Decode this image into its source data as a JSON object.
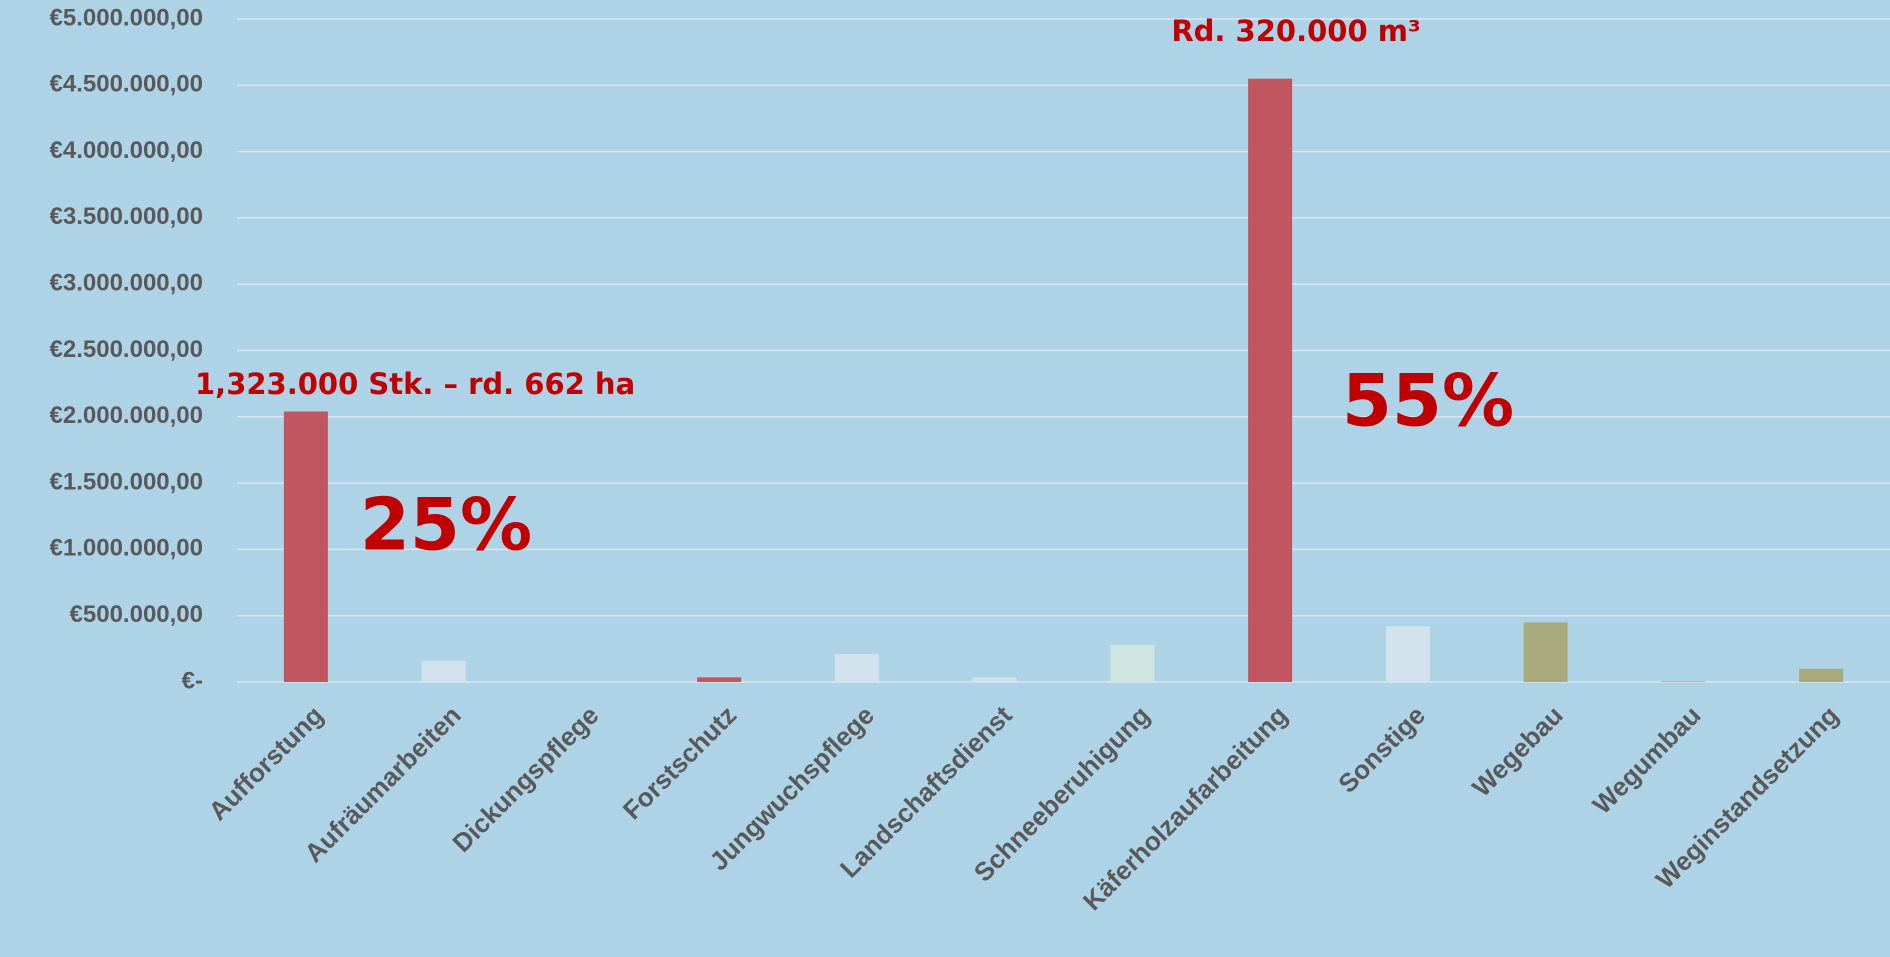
{
  "chart_data": {
    "type": "bar",
    "categories": [
      "Aufforstung",
      "Aufräumarbeiten",
      "Dickungspflege",
      "Forstschutz",
      "Jungwuchspflege",
      "Landschaftsdienst",
      "Schneeberuhigung",
      "Käferholzaufarbeitung",
      "Sonstige",
      "Wegebau",
      "Wegumbau",
      "Weginstandsetzung"
    ],
    "values": [
      2040000,
      160000,
      5000,
      35000,
      210000,
      35000,
      280000,
      4550000,
      420000,
      450000,
      5000,
      100000
    ],
    "colors": [
      "#c0565f",
      "#d3e3ee",
      "#d3e3ee",
      "#c0565f",
      "#d3e3ee",
      "#d3e3ee",
      "#cde6e0",
      "#c0565f",
      "#d3e3ee",
      "#a8aa7c",
      "#a8aa7c",
      "#a8aa7c"
    ],
    "ylim": [
      0,
      5000000
    ],
    "yticks": [
      {
        "value": 0,
        "label": "€-"
      },
      {
        "value": 500000,
        "label": "€500.000,00"
      },
      {
        "value": 1000000,
        "label": "€1.000.000,00"
      },
      {
        "value": 1500000,
        "label": "€1.500.000,00"
      },
      {
        "value": 2000000,
        "label": "€2.000.000,00"
      },
      {
        "value": 2500000,
        "label": "€2.500.000,00"
      },
      {
        "value": 3000000,
        "label": "€3.000.000,00"
      },
      {
        "value": 3500000,
        "label": "€3.500.000,00"
      },
      {
        "value": 4000000,
        "label": "€4.000.000,00"
      },
      {
        "value": 4500000,
        "label": "€4.500.000,00"
      },
      {
        "value": 5000000,
        "label": "€5.000.000,00"
      }
    ],
    "grid": true,
    "annotations": [
      "Rd. 320.000 m³",
      "1,323.000 Stk. – rd. 662 ha",
      "25%",
      "55%"
    ]
  }
}
